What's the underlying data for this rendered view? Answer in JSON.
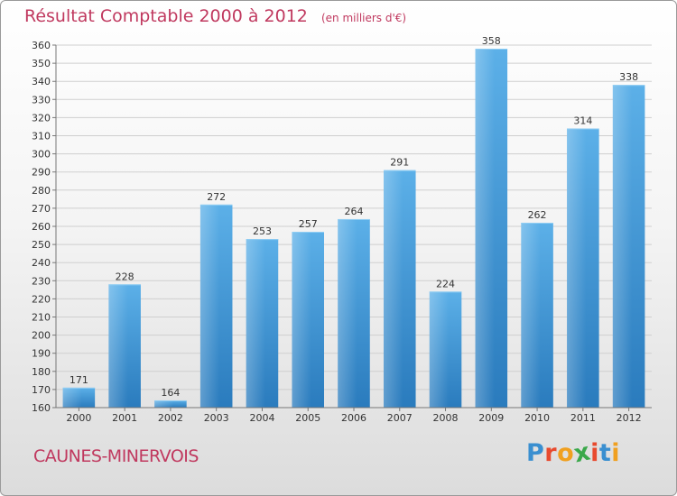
{
  "title": "Résultat Comptable 2000 à 2012",
  "subtitle": "(en milliers d'€)",
  "commune": "CAUNES-MINERVOIS",
  "logo": {
    "text": "Proxiti",
    "colors": [
      "#3a8fd0",
      "#e84a2e",
      "#f0a020",
      "#3aa84a",
      "#e84a2e",
      "#3a8fd0",
      "#f0a020"
    ]
  },
  "colors": {
    "accent": "#c0395f",
    "bar": "#4aa0dc",
    "bar_dark": "#2a7bbd",
    "grid": "#cfcfcf"
  },
  "chart_data": {
    "type": "bar",
    "categories": [
      "2000",
      "2001",
      "2002",
      "2003",
      "2004",
      "2005",
      "2006",
      "2007",
      "2008",
      "2009",
      "2010",
      "2011",
      "2012"
    ],
    "values": [
      171,
      228,
      164,
      272,
      253,
      257,
      264,
      291,
      224,
      358,
      262,
      314,
      338
    ],
    "ylim": [
      160,
      360
    ],
    "yticks": [
      160,
      170,
      180,
      190,
      200,
      210,
      220,
      230,
      240,
      250,
      260,
      270,
      280,
      290,
      300,
      310,
      320,
      330,
      340,
      350,
      360
    ],
    "grid": true,
    "xlabel": "",
    "ylabel": ""
  }
}
